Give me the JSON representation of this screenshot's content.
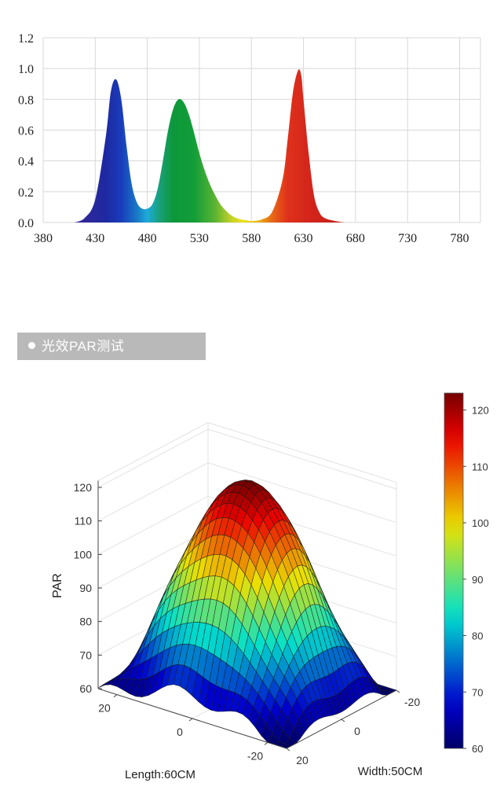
{
  "section": {
    "label": "光效PAR测试"
  },
  "chart_data": [
    {
      "type": "area",
      "title": "",
      "xlabel": "",
      "ylabel": "",
      "xlim": [
        380,
        800
      ],
      "ylim": [
        0,
        1.2
      ],
      "x_ticks": [
        "380",
        "430",
        "480",
        "530",
        "580",
        "630",
        "680",
        "730",
        "780"
      ],
      "y_ticks": [
        "0.0",
        "0.2",
        "0.4",
        "0.6",
        "0.8",
        "1.0",
        "1.2"
      ],
      "grid": true,
      "colors": "spectral (wavelength-colored fill)",
      "x": [
        410,
        420,
        430,
        440,
        445,
        450,
        455,
        460,
        465,
        470,
        475,
        480,
        485,
        490,
        495,
        500,
        505,
        510,
        515,
        520,
        525,
        530,
        535,
        540,
        545,
        550,
        555,
        560,
        565,
        570,
        575,
        580,
        590,
        600,
        610,
        615,
        620,
        625,
        628,
        630,
        635,
        640,
        645,
        650,
        660,
        670,
        680
      ],
      "values": [
        0.0,
        0.03,
        0.15,
        0.55,
        0.85,
        0.93,
        0.8,
        0.5,
        0.25,
        0.13,
        0.09,
        0.09,
        0.12,
        0.22,
        0.4,
        0.6,
        0.74,
        0.8,
        0.78,
        0.7,
        0.58,
        0.45,
        0.34,
        0.25,
        0.18,
        0.12,
        0.08,
        0.05,
        0.03,
        0.02,
        0.015,
        0.01,
        0.02,
        0.07,
        0.28,
        0.55,
        0.85,
        0.99,
        0.95,
        0.8,
        0.45,
        0.18,
        0.07,
        0.03,
        0.01,
        0.0,
        0.0
      ]
    },
    {
      "type": "surface",
      "title": "",
      "zlabel": "PAR",
      "xlabel": "Length:60CM",
      "ylabel": "Width:50CM",
      "z_ticks": [
        "60",
        "70",
        "80",
        "90",
        "100",
        "110",
        "120"
      ],
      "length_ticks": [
        "20",
        "0",
        "-20"
      ],
      "width_ticks": [
        "-20",
        "0",
        "20"
      ],
      "zlim": [
        60,
        122
      ],
      "colorbar_ticks": [
        "60",
        "70",
        "80",
        "90",
        "100",
        "110",
        "120"
      ],
      "colormap": "jet",
      "peak_value": 122,
      "corner_values": {
        "length_+25_width_+20": 60,
        "length_-25_width_+20": 60,
        "length_-25_width_-20": 65,
        "length_+25_width_-20": 62
      }
    }
  ]
}
